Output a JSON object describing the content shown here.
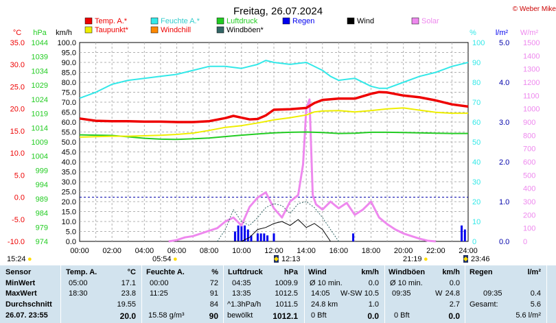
{
  "header": {
    "title": "Freitag, 26.07.2024",
    "copyright": "© Weber Mike"
  },
  "legend": [
    {
      "label": "Temp. A.*",
      "color": "#ee0000"
    },
    {
      "label": "Feuchte A.*",
      "color": "#33e8e8"
    },
    {
      "label": "Luftdruck",
      "color": "#22cc22"
    },
    {
      "label": "Regen",
      "color": "#0000ee"
    },
    {
      "label": "Wind",
      "color": "#000000"
    },
    {
      "label": "Solar",
      "color": "#ee88ee"
    },
    {
      "label": "Taupunkt*",
      "color": "#eeee00"
    },
    {
      "label": "Windchill",
      "color": "#ff8800"
    },
    {
      "label": "Windböen*",
      "color": "#336666"
    }
  ],
  "axes": {
    "temp_unit": "°C",
    "pressure_unit": "hPa",
    "wind_unit": "km/h",
    "humidity_unit": "%",
    "rain_unit": "l/m²",
    "solar_unit": "W/m²",
    "temp_ticks": [
      "35.0",
      "30.0",
      "25.0",
      "20.0",
      "15.0",
      "10.0",
      "5.0",
      "0.0",
      "-5.0",
      "-10.0"
    ],
    "pressure_ticks": [
      "1044",
      "1039",
      "1034",
      "1029",
      "1024",
      "1019",
      "1014",
      "1009",
      "1004",
      "999",
      "994",
      "989",
      "984",
      "979",
      "974"
    ],
    "wind_ticks": [
      "100.0",
      "95.0",
      "90.0",
      "85.0",
      "80.0",
      "75.0",
      "70.0",
      "65.0",
      "60.0",
      "55.0",
      "50.0",
      "45.0",
      "40.0",
      "35.0",
      "30.0",
      "25.0",
      "20.0",
      "15.0",
      "10.0",
      "5.0",
      "0.0"
    ],
    "humidity_ticks": [
      "100",
      "90",
      "80",
      "70",
      "60",
      "50",
      "40",
      "30",
      "20",
      "10",
      "0"
    ],
    "rain_ticks": [
      "5.0",
      "4.0",
      "3.0",
      "2.0",
      "1.0",
      "0.0"
    ],
    "solar_ticks": [
      "1500",
      "1400",
      "1300",
      "1200",
      "1100",
      "1000",
      "900",
      "800",
      "700",
      "600",
      "500",
      "400",
      "300",
      "200",
      "100",
      "0"
    ],
    "x_ticks": [
      "00:00",
      "02:00",
      "04:00",
      "06:00",
      "08:00",
      "10:00",
      "12:00",
      "14:00",
      "16:00",
      "18:00",
      "20:00",
      "22:00",
      "24:00"
    ]
  },
  "sun": {
    "left_time": "15:24",
    "sunrise": "05:54",
    "noon": "12:13",
    "sunset": "21:19",
    "right_time": "23:46"
  },
  "chart_data": {
    "type": "line",
    "title": "Freitag, 26.07.2024",
    "x_unit": "hours",
    "xlim": [
      0,
      24
    ],
    "series": [
      {
        "name": "Temp. A.*",
        "axis": "temp",
        "ylim": [
          -10,
          35
        ],
        "x": [
          0,
          1,
          2,
          3,
          4,
          5,
          6,
          7,
          8,
          9,
          9.5,
          10,
          10.5,
          11,
          11.5,
          12,
          13,
          14,
          14.5,
          15,
          16,
          17,
          18,
          18.5,
          19,
          20,
          21,
          22,
          23,
          24
        ],
        "y": [
          17.8,
          17.3,
          17.2,
          17.2,
          17.1,
          17.1,
          17.0,
          17.0,
          17.2,
          17.9,
          18.4,
          18.0,
          17.6,
          17.7,
          18.5,
          19.8,
          19.9,
          20.2,
          21.3,
          22.0,
          22.3,
          22.3,
          23.4,
          23.8,
          23.7,
          23.0,
          22.6,
          21.9,
          21.0,
          20.5
        ]
      },
      {
        "name": "Feuchte A.*",
        "axis": "humidity",
        "ylim": [
          0,
          100
        ],
        "x": [
          0,
          1,
          2,
          3,
          4,
          5,
          6,
          7,
          8,
          9,
          10,
          11,
          11.5,
          12,
          13,
          14,
          15,
          15.5,
          16,
          17,
          18,
          18.5,
          19,
          20,
          21,
          22,
          23,
          24
        ],
        "y": [
          72,
          75,
          79,
          81,
          82,
          83,
          84,
          86,
          88,
          88,
          87,
          89,
          91,
          90,
          89,
          90,
          86,
          83,
          81,
          82,
          78,
          77,
          77,
          80,
          83,
          85,
          88,
          90
        ]
      },
      {
        "name": "Luftdruck",
        "axis": "pressure",
        "ylim": [
          974,
          1044
        ],
        "x": [
          0,
          1,
          2,
          3,
          4,
          5,
          6,
          7,
          8,
          9,
          10,
          11,
          12,
          13,
          14,
          15,
          16,
          17,
          18,
          19,
          20,
          21,
          22,
          23,
          24
        ],
        "y": [
          1011.5,
          1011.4,
          1011.3,
          1010.8,
          1010.3,
          1010.0,
          1009.9,
          1010.1,
          1010.4,
          1010.9,
          1011.4,
          1011.8,
          1012.2,
          1012.4,
          1012.5,
          1012.3,
          1012.0,
          1012.1,
          1012.4,
          1012.4,
          1012.3,
          1012.2,
          1012.1,
          1012.0,
          1012.0
        ]
      },
      {
        "name": "Taupunkt*",
        "axis": "temp",
        "ylim": [
          -10,
          35
        ],
        "x": [
          0,
          1,
          2,
          3,
          4,
          5,
          6,
          7,
          8,
          9,
          10,
          11,
          12,
          13,
          14,
          14.5,
          15,
          16,
          17,
          18,
          19,
          20,
          21,
          22,
          23,
          24
        ],
        "y": [
          13.6,
          13.7,
          13.8,
          13.8,
          13.9,
          14.0,
          14.2,
          14.5,
          15.1,
          15.8,
          16.2,
          16.8,
          17.5,
          18.0,
          18.6,
          19.3,
          19.5,
          19.6,
          19.3,
          19.6,
          20.0,
          20.2,
          19.7,
          19.2,
          19.0,
          19.0
        ]
      },
      {
        "name": "Solar",
        "axis": "solar",
        "ylim": [
          0,
          1500
        ],
        "x": [
          5.5,
          6,
          6.5,
          7,
          7.5,
          8,
          8.5,
          9,
          9.5,
          10,
          10.5,
          11,
          11.5,
          12,
          12.5,
          13,
          13.5,
          13.8,
          14,
          14.2,
          14.4,
          14.6,
          15,
          15.5,
          16,
          16.5,
          17,
          17.5,
          18,
          18.5,
          19,
          19.5,
          20,
          20.5,
          21,
          21.5,
          22
        ],
        "y": [
          0,
          10,
          30,
          40,
          60,
          80,
          100,
          150,
          180,
          120,
          260,
          330,
          370,
          250,
          180,
          300,
          350,
          580,
          1000,
          1070,
          350,
          280,
          240,
          300,
          250,
          290,
          200,
          240,
          300,
          180,
          130,
          90,
          60,
          40,
          20,
          5,
          0
        ]
      },
      {
        "name": "Wind",
        "axis": "wind",
        "ylim": [
          0,
          100
        ],
        "x": [
          9.5,
          10,
          10.5,
          11,
          11.5,
          12,
          12.5,
          13,
          13.5,
          14,
          14.5,
          15,
          15.5
        ],
        "y": [
          0,
          0,
          2,
          6,
          7,
          9,
          10,
          8,
          11,
          7,
          9,
          6,
          0
        ]
      },
      {
        "name": "Windböen*",
        "axis": "wind",
        "ylim": [
          0,
          100
        ],
        "x": [
          8.5,
          9,
          9.5,
          10,
          10.5,
          11,
          11.5,
          12,
          12.5,
          13,
          13.5,
          14,
          14.5,
          15,
          15.5,
          16
        ],
        "y": [
          0,
          6,
          16,
          10,
          8,
          12,
          17,
          19,
          18,
          14,
          19,
          20,
          17,
          12,
          6,
          0
        ]
      },
      {
        "name": "Regen",
        "axis": "rain",
        "ylim": [
          0,
          5
        ],
        "type": "bar",
        "x": [
          9.6,
          9.8,
          10.0,
          10.2,
          10.4,
          10.6,
          11.0,
          11.2,
          11.4,
          11.6,
          12.0,
          16.9,
          23.6,
          23.8
        ],
        "y": [
          0.25,
          0.4,
          0.4,
          0.4,
          0.3,
          0.15,
          0.2,
          0.2,
          0.2,
          0.15,
          0.2,
          0.2,
          0.4,
          0.3
        ]
      }
    ]
  },
  "stats": {
    "col_sensor": {
      "header": "Sensor",
      "row1": "MinWert",
      "row2": "MaxWert",
      "row3": "Durchschnitt",
      "row4": "26.07. 23:55"
    },
    "col_temp": {
      "header": "Temp. A.",
      "unit": "°C",
      "min_t": "05:00",
      "min_v": "17.1",
      "max_t": "18:30",
      "max_v": "23.8",
      "avg": "19.55",
      "cur": "20.0"
    },
    "col_hum": {
      "header": "Feuchte A.",
      "unit": "%",
      "min_t": "00:00",
      "min_v": "72",
      "max_t": "11:25",
      "max_v": "91",
      "avg": "84",
      "extra": "15.58 g/m³",
      "cur": "90"
    },
    "col_press": {
      "header": "Luftdruck",
      "unit": "hPa",
      "min_t": "04:35",
      "min_v": "1009.9",
      "max_t": "13:35",
      "max_v": "1012.5",
      "trend": "^1.3hPa/h",
      "avg": "1011.5",
      "cond": "bewölkt",
      "cur": "1012.1"
    },
    "col_wind": {
      "header": "Wind",
      "unit": "km/h",
      "r1l": "Ø 10 min.",
      "r1v": "0.0",
      "r2t": "14:05",
      "r2d": "W-SW",
      "r2v": "10.5",
      "r3l": "24.8 km",
      "r3v": "1.0",
      "r4l": "0 Bft",
      "r4v": "0.0"
    },
    "col_gust": {
      "header": "Windböen",
      "unit": "km/h",
      "r1l": "Ø 10 min.",
      "r1v": "0.0",
      "r2t": "09:35",
      "r2d": "W",
      "r2v": "24.8",
      "r3v": "2.7",
      "r4l": "0 Bft",
      "r4v": "0.0"
    },
    "col_rain": {
      "header": "Regen",
      "unit": "l/m²",
      "r2t": "09:35",
      "r2v": "0.4",
      "r3l": "Gesamt:",
      "r3v": "5.6",
      "r4v": "5.6 l/m²"
    }
  }
}
